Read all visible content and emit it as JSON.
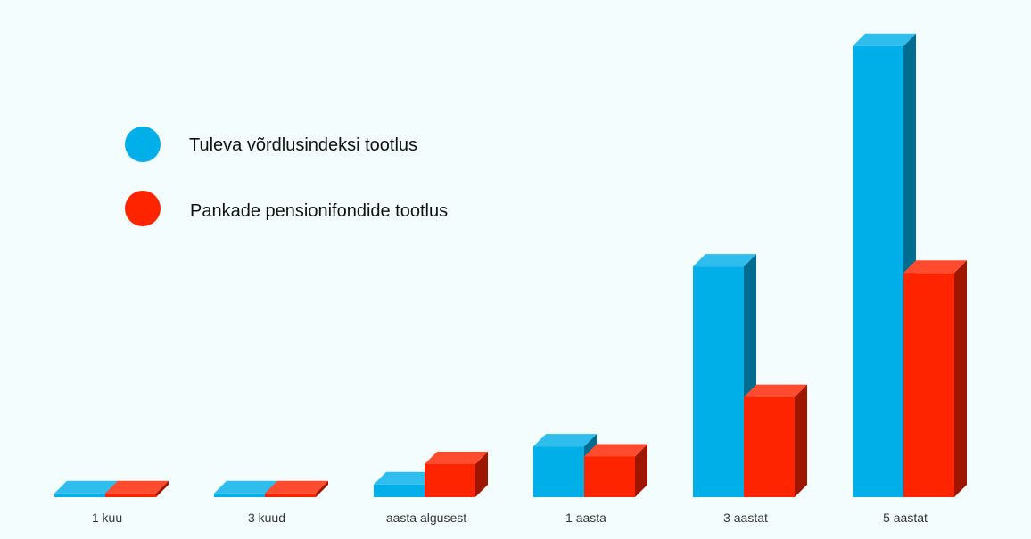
{
  "chart_data": {
    "type": "bar",
    "style": "3d",
    "categories": [
      "1 kuu",
      "3 kuud",
      "aasta algusest",
      "1 aasta",
      "3 aastat",
      "5 aastat"
    ],
    "series": [
      {
        "name": "Tuleva võrdlusindeksi tootlus",
        "color": "#00aee8",
        "values": [
          0.3,
          0.3,
          1.0,
          4.0,
          18.2,
          35.6
        ]
      },
      {
        "name": "Pankade pensionifondide tootlus",
        "color": "#ff2400",
        "values": [
          0.3,
          0.3,
          2.6,
          3.2,
          7.9,
          17.7
        ]
      }
    ],
    "legend_position": "top-left",
    "grid": false,
    "ylim": [
      0,
      37
    ]
  }
}
